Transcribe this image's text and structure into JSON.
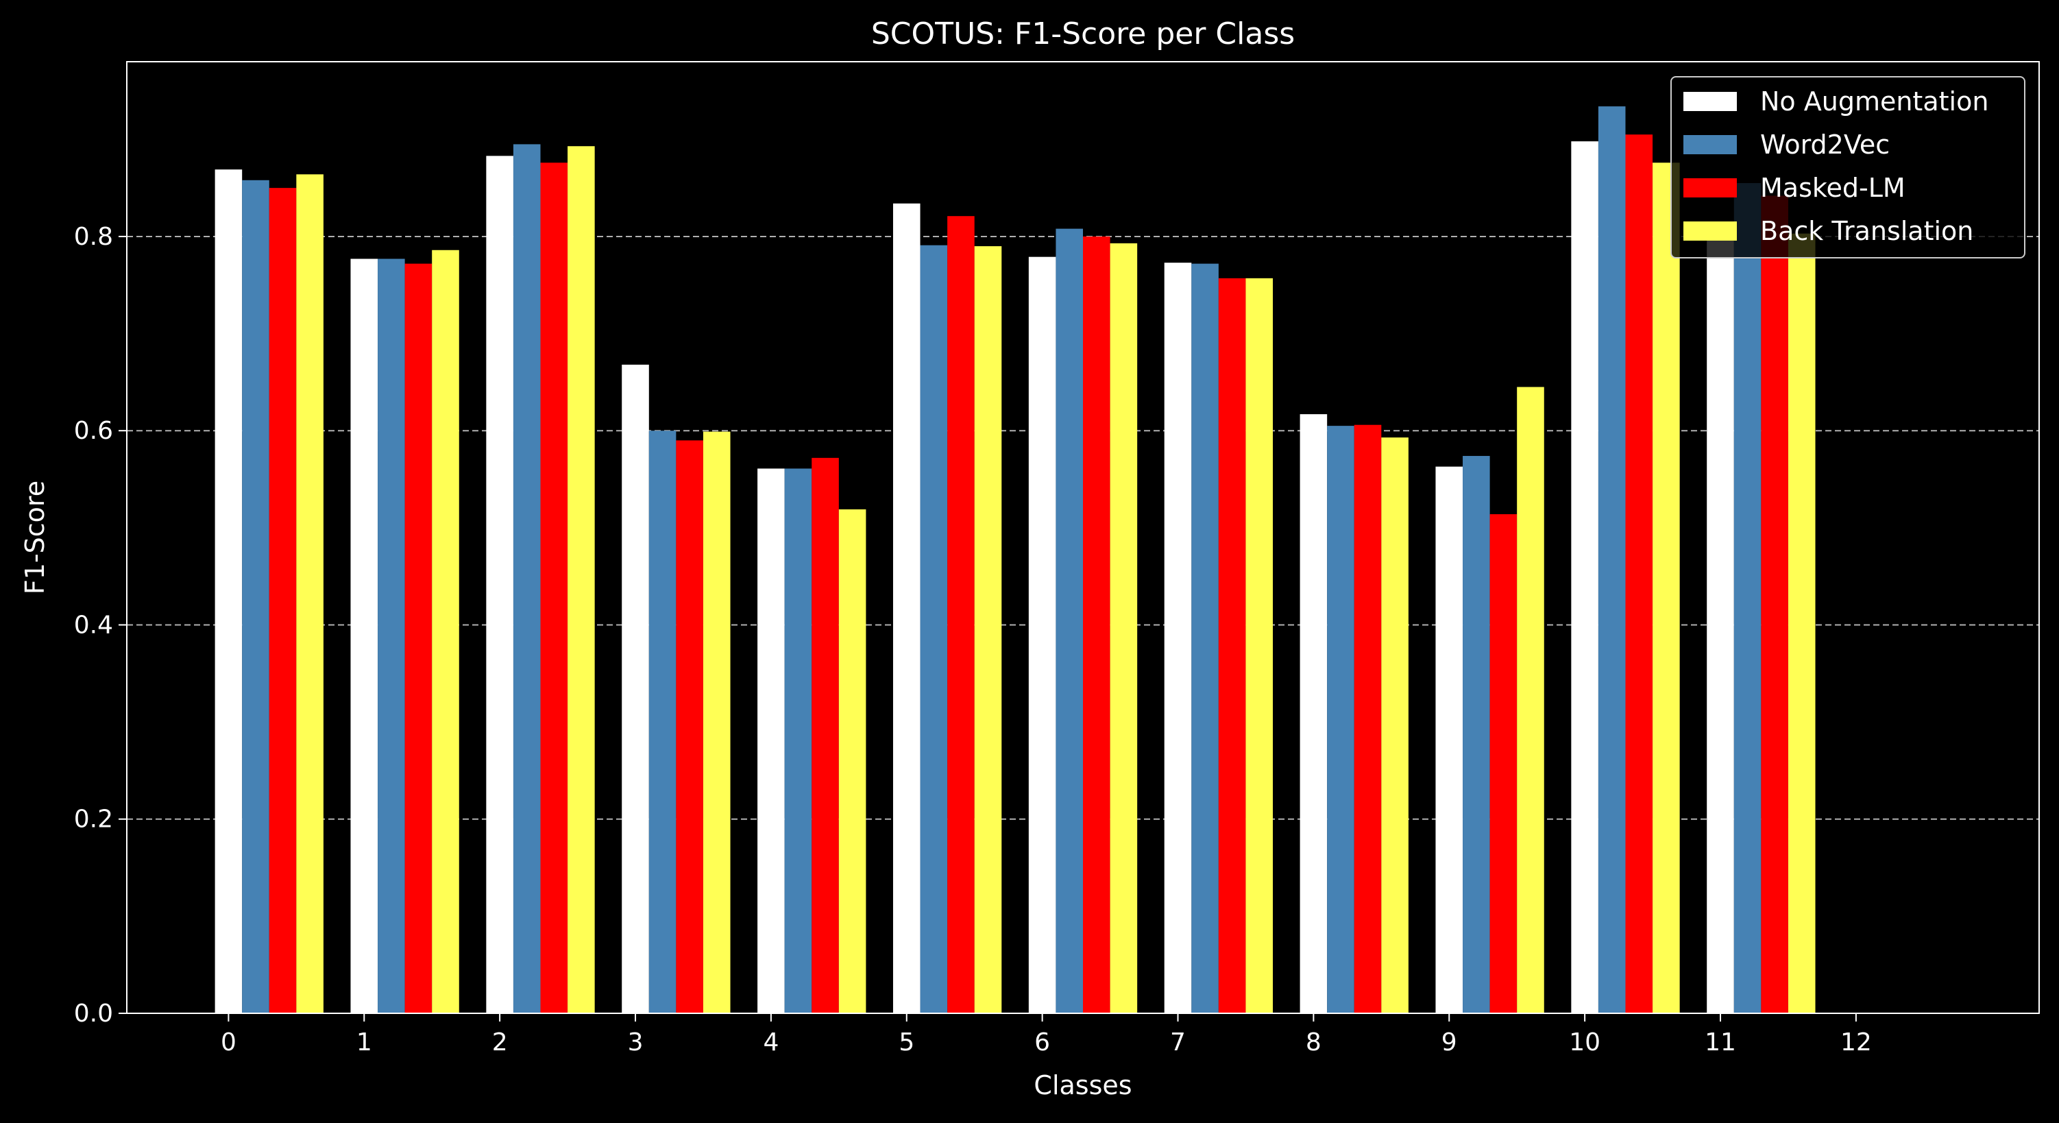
{
  "chart_data": {
    "type": "bar",
    "title": "SCOTUS: F1-Score per Class",
    "xlabel": "Classes",
    "ylabel": "F1-Score",
    "categories": [
      "0",
      "1",
      "2",
      "3",
      "4",
      "5",
      "6",
      "7",
      "8",
      "9",
      "10",
      "11"
    ],
    "xticks": [
      "0",
      "1",
      "2",
      "3",
      "4",
      "5",
      "6",
      "7",
      "8",
      "9",
      "10",
      "11",
      "12"
    ],
    "xlim": [
      -0.75,
      13.35
    ],
    "ylim": [
      0,
      0.98
    ],
    "yticks": [
      "0.0",
      "0.2",
      "0.4",
      "0.6",
      "0.8"
    ],
    "grid": "horizontal dashed",
    "legend_position": "top-right",
    "series": [
      {
        "name": "No Augmentation",
        "color": "#ffffff",
        "values": [
          0.869,
          0.777,
          0.883,
          0.668,
          0.561,
          0.834,
          0.779,
          0.773,
          0.617,
          0.563,
          0.898,
          0.81
        ]
      },
      {
        "name": "Word2Vec",
        "color": "#4682b4",
        "values": [
          0.858,
          0.777,
          0.895,
          0.6,
          0.561,
          0.791,
          0.808,
          0.772,
          0.605,
          0.574,
          0.934,
          0.855
        ]
      },
      {
        "name": "Masked-LM",
        "color": "#ff0000",
        "values": [
          0.85,
          0.772,
          0.876,
          0.59,
          0.572,
          0.821,
          0.8,
          0.757,
          0.606,
          0.514,
          0.905,
          0.842
        ]
      },
      {
        "name": "Back Translation",
        "color": "#ffff55",
        "values": [
          0.864,
          0.786,
          0.893,
          0.599,
          0.519,
          0.79,
          0.793,
          0.757,
          0.593,
          0.645,
          0.876,
          0.803
        ]
      }
    ]
  }
}
